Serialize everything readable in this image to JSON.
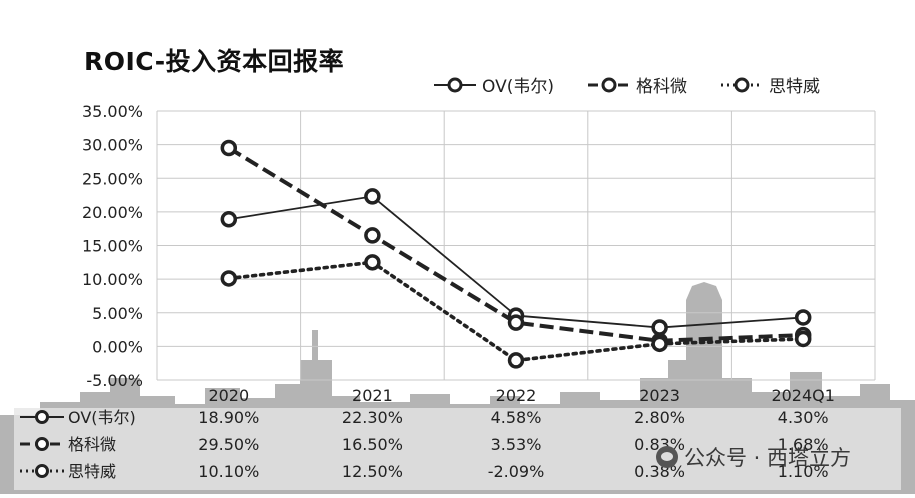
{
  "chart_data": {
    "type": "line",
    "title": "ROIC-投入资本回报率",
    "categories": [
      "2020",
      "2021",
      "2022",
      "2023",
      "2024Q1"
    ],
    "y_tick_labels": [
      "35.00%",
      "30.00%",
      "25.00%",
      "20.00%",
      "15.00%",
      "10.00%",
      "5.00%",
      "0.00%",
      "-5.00%"
    ],
    "ylim": [
      -5,
      35
    ],
    "grid": true,
    "legend_position": "top-right",
    "series": [
      {
        "name": "OV(韦尔)",
        "values": [
          18.9,
          22.3,
          4.58,
          2.8,
          4.3
        ],
        "labels": [
          "18.90%",
          "22.30%",
          "4.58%",
          "2.80%",
          "4.30%"
        ],
        "style": "solid"
      },
      {
        "name": "格科微",
        "values": [
          29.5,
          16.5,
          3.53,
          0.83,
          1.68
        ],
        "labels": [
          "29.50%",
          "16.50%",
          "3.53%",
          "0.83%",
          "1.68%"
        ],
        "style": "dashed"
      },
      {
        "name": "思特威",
        "values": [
          10.1,
          12.5,
          -2.09,
          0.38,
          1.1
        ],
        "labels": [
          "10.10%",
          "12.50%",
          "-2.09%",
          "0.38%",
          "1.10%"
        ],
        "style": "dotted"
      }
    ]
  },
  "colors": {
    "line": "#222222",
    "grid": "#c8c8c8",
    "skyline": "#b4b4b4",
    "table_bg": "#e6e6e6"
  },
  "watermark": {
    "icon": "wechat-icon",
    "text": "公众号 · 西塔立方"
  }
}
